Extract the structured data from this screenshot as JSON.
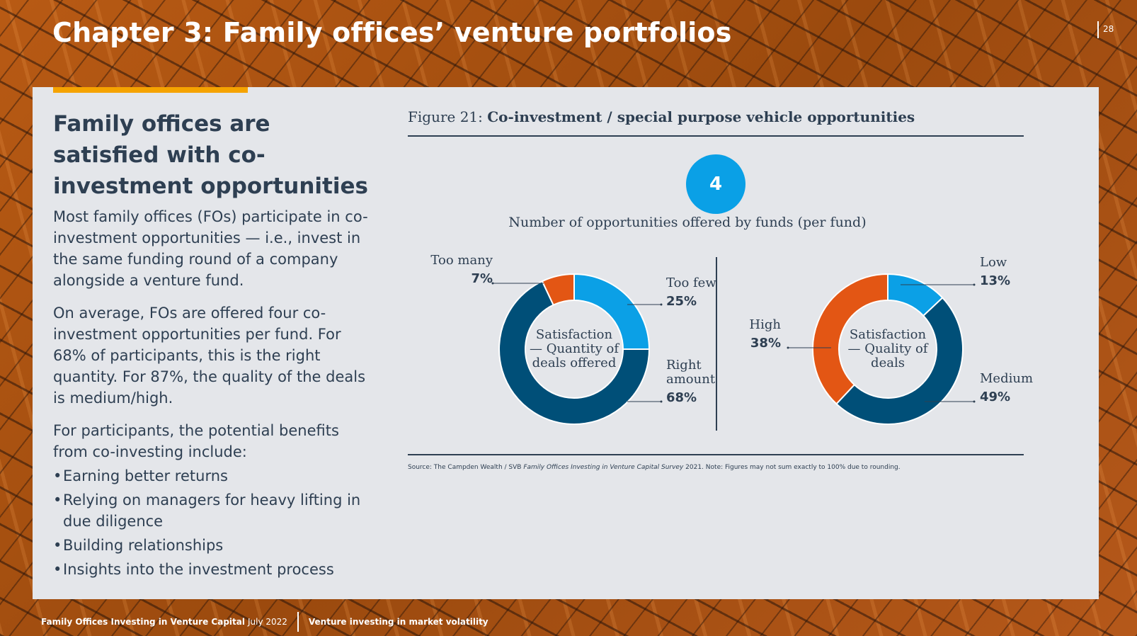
{
  "header": {
    "chapter_title": "Chapter 3: Family offices’ venture portfolios",
    "page_number": "28"
  },
  "left": {
    "headline": "Family offices are satisfied with co-investment opportunities",
    "para1": "Most family offices (FOs) participate in co-investment opportunities — i.e., invest in the same funding round of a company alongside a venture fund.",
    "para2": "On average, FOs are offered four co-investment opportunities per fund. For 68% of participants, this is the right quantity. For 87%, the quality of the deals is medium/high.",
    "para3": "For participants, the potential benefits from co-investing include:",
    "bullets": [
      "Earning better returns",
      "Relying on managers for heavy lifting in due diligence",
      "Building relationships",
      "Insights into the investment process"
    ]
  },
  "figure": {
    "prefix": "Figure 21: ",
    "title": "Co-investment / special purpose vehicle opportunities",
    "badge_value": "4",
    "badge_caption": "Number of opportunities offered by funds (per fund)",
    "source_prefix": "Source: The Campden Wealth / SVB ",
    "source_italic": "Family Offices Investing in Venture Capital Survey",
    "source_suffix": " 2021. Note: Figures may not sum exactly to 100% due to rounding."
  },
  "chart_data": [
    {
      "type": "pie",
      "title": "Satisfaction — Quantity of deals offered",
      "center_lines": [
        "Satisfaction",
        "— Quantity of",
        "deals offered"
      ],
      "categories": [
        "Too few",
        "Right amount",
        "Too many"
      ],
      "values": [
        25,
        68,
        7
      ],
      "value_labels": [
        "25%",
        "68%",
        "7%"
      ],
      "label_lines": [
        [
          "Too few"
        ],
        [
          "Right",
          "amount"
        ],
        [
          "Too many"
        ]
      ],
      "colors": [
        "#0ba0e6",
        "#004f78",
        "#e35614"
      ]
    },
    {
      "type": "pie",
      "title": "Satisfaction — Quality of deals",
      "center_lines": [
        "Satisfaction",
        "— Quality of",
        "deals"
      ],
      "categories": [
        "Low",
        "Medium",
        "High"
      ],
      "values": [
        13,
        49,
        38
      ],
      "value_labels": [
        "13%",
        "49%",
        "38%"
      ],
      "label_lines": [
        [
          "Low"
        ],
        [
          "Medium"
        ],
        [
          "High"
        ]
      ],
      "colors": [
        "#0ba0e6",
        "#004f78",
        "#e35614"
      ]
    }
  ],
  "footer": {
    "publication": "Family Offices Investing in Venture Capital",
    "date": "July 2022",
    "section": "Venture investing in market volatility"
  }
}
